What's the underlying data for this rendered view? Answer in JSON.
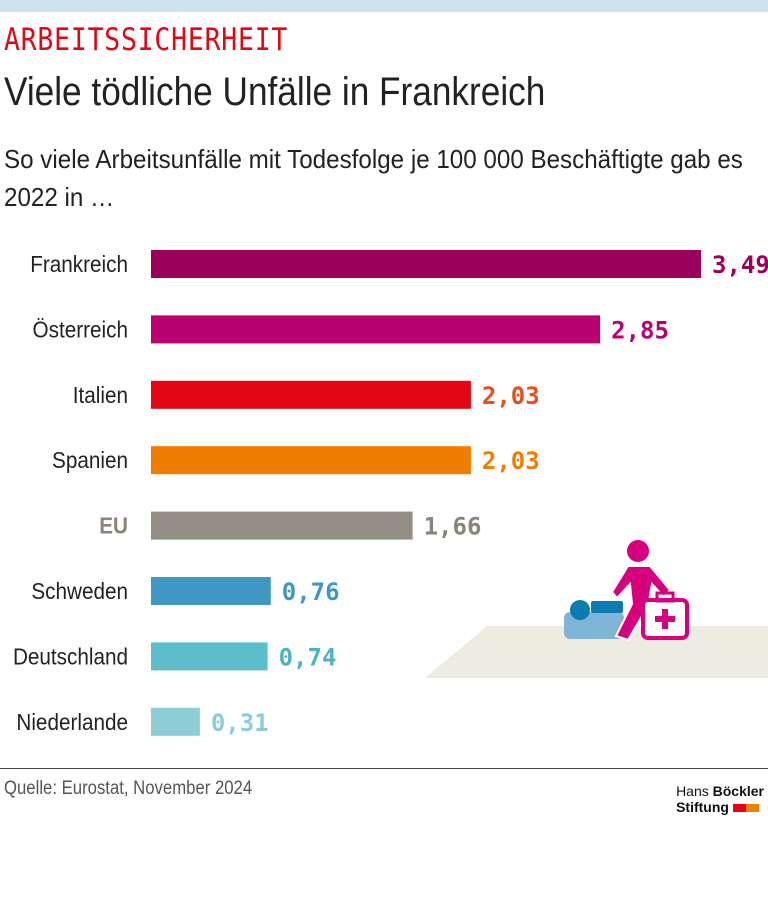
{
  "kicker": "ARBEITSSICHERHEIT",
  "title": "Viele tödliche Unfälle in Frankreich",
  "subtitle": "So viele Arbeitsunfälle mit Todesfolge je 100 000 Beschäftigte gab es 2022 in …",
  "source": "Quelle: Eurostat, November 2024",
  "logo": {
    "line1a": "Hans",
    "line1b": "Böckler",
    "line2": "Stiftung",
    "colors": [
      "#e30613",
      "#f07d00"
    ]
  },
  "chart_data": {
    "type": "bar",
    "orientation": "horizontal",
    "categories": [
      "Frankreich",
      "Österreich",
      "Italien",
      "Spanien",
      "EU",
      "Schweden",
      "Deutschland",
      "Niederlande"
    ],
    "values": [
      3.49,
      2.85,
      2.03,
      2.03,
      1.66,
      0.76,
      0.74,
      0.31
    ],
    "labels": [
      "3,49",
      "2,85",
      "2,03",
      "2,03",
      "1,66",
      "0,76",
      "0,74",
      "0,31"
    ],
    "colors": [
      "#9b005a",
      "#b8006e",
      "#e30613",
      "#f07d00",
      "#948f85",
      "#3f97c4",
      "#5dbecb",
      "#8ccdd6"
    ],
    "label_colors": [
      "#9b005a",
      "#b8006e",
      "#e94e1b",
      "#f07d00",
      "#8a857b",
      "#3f97c4",
      "#4fb3c2",
      "#8ccdd6"
    ],
    "xlim": [
      0,
      3.49
    ],
    "grid": false
  }
}
